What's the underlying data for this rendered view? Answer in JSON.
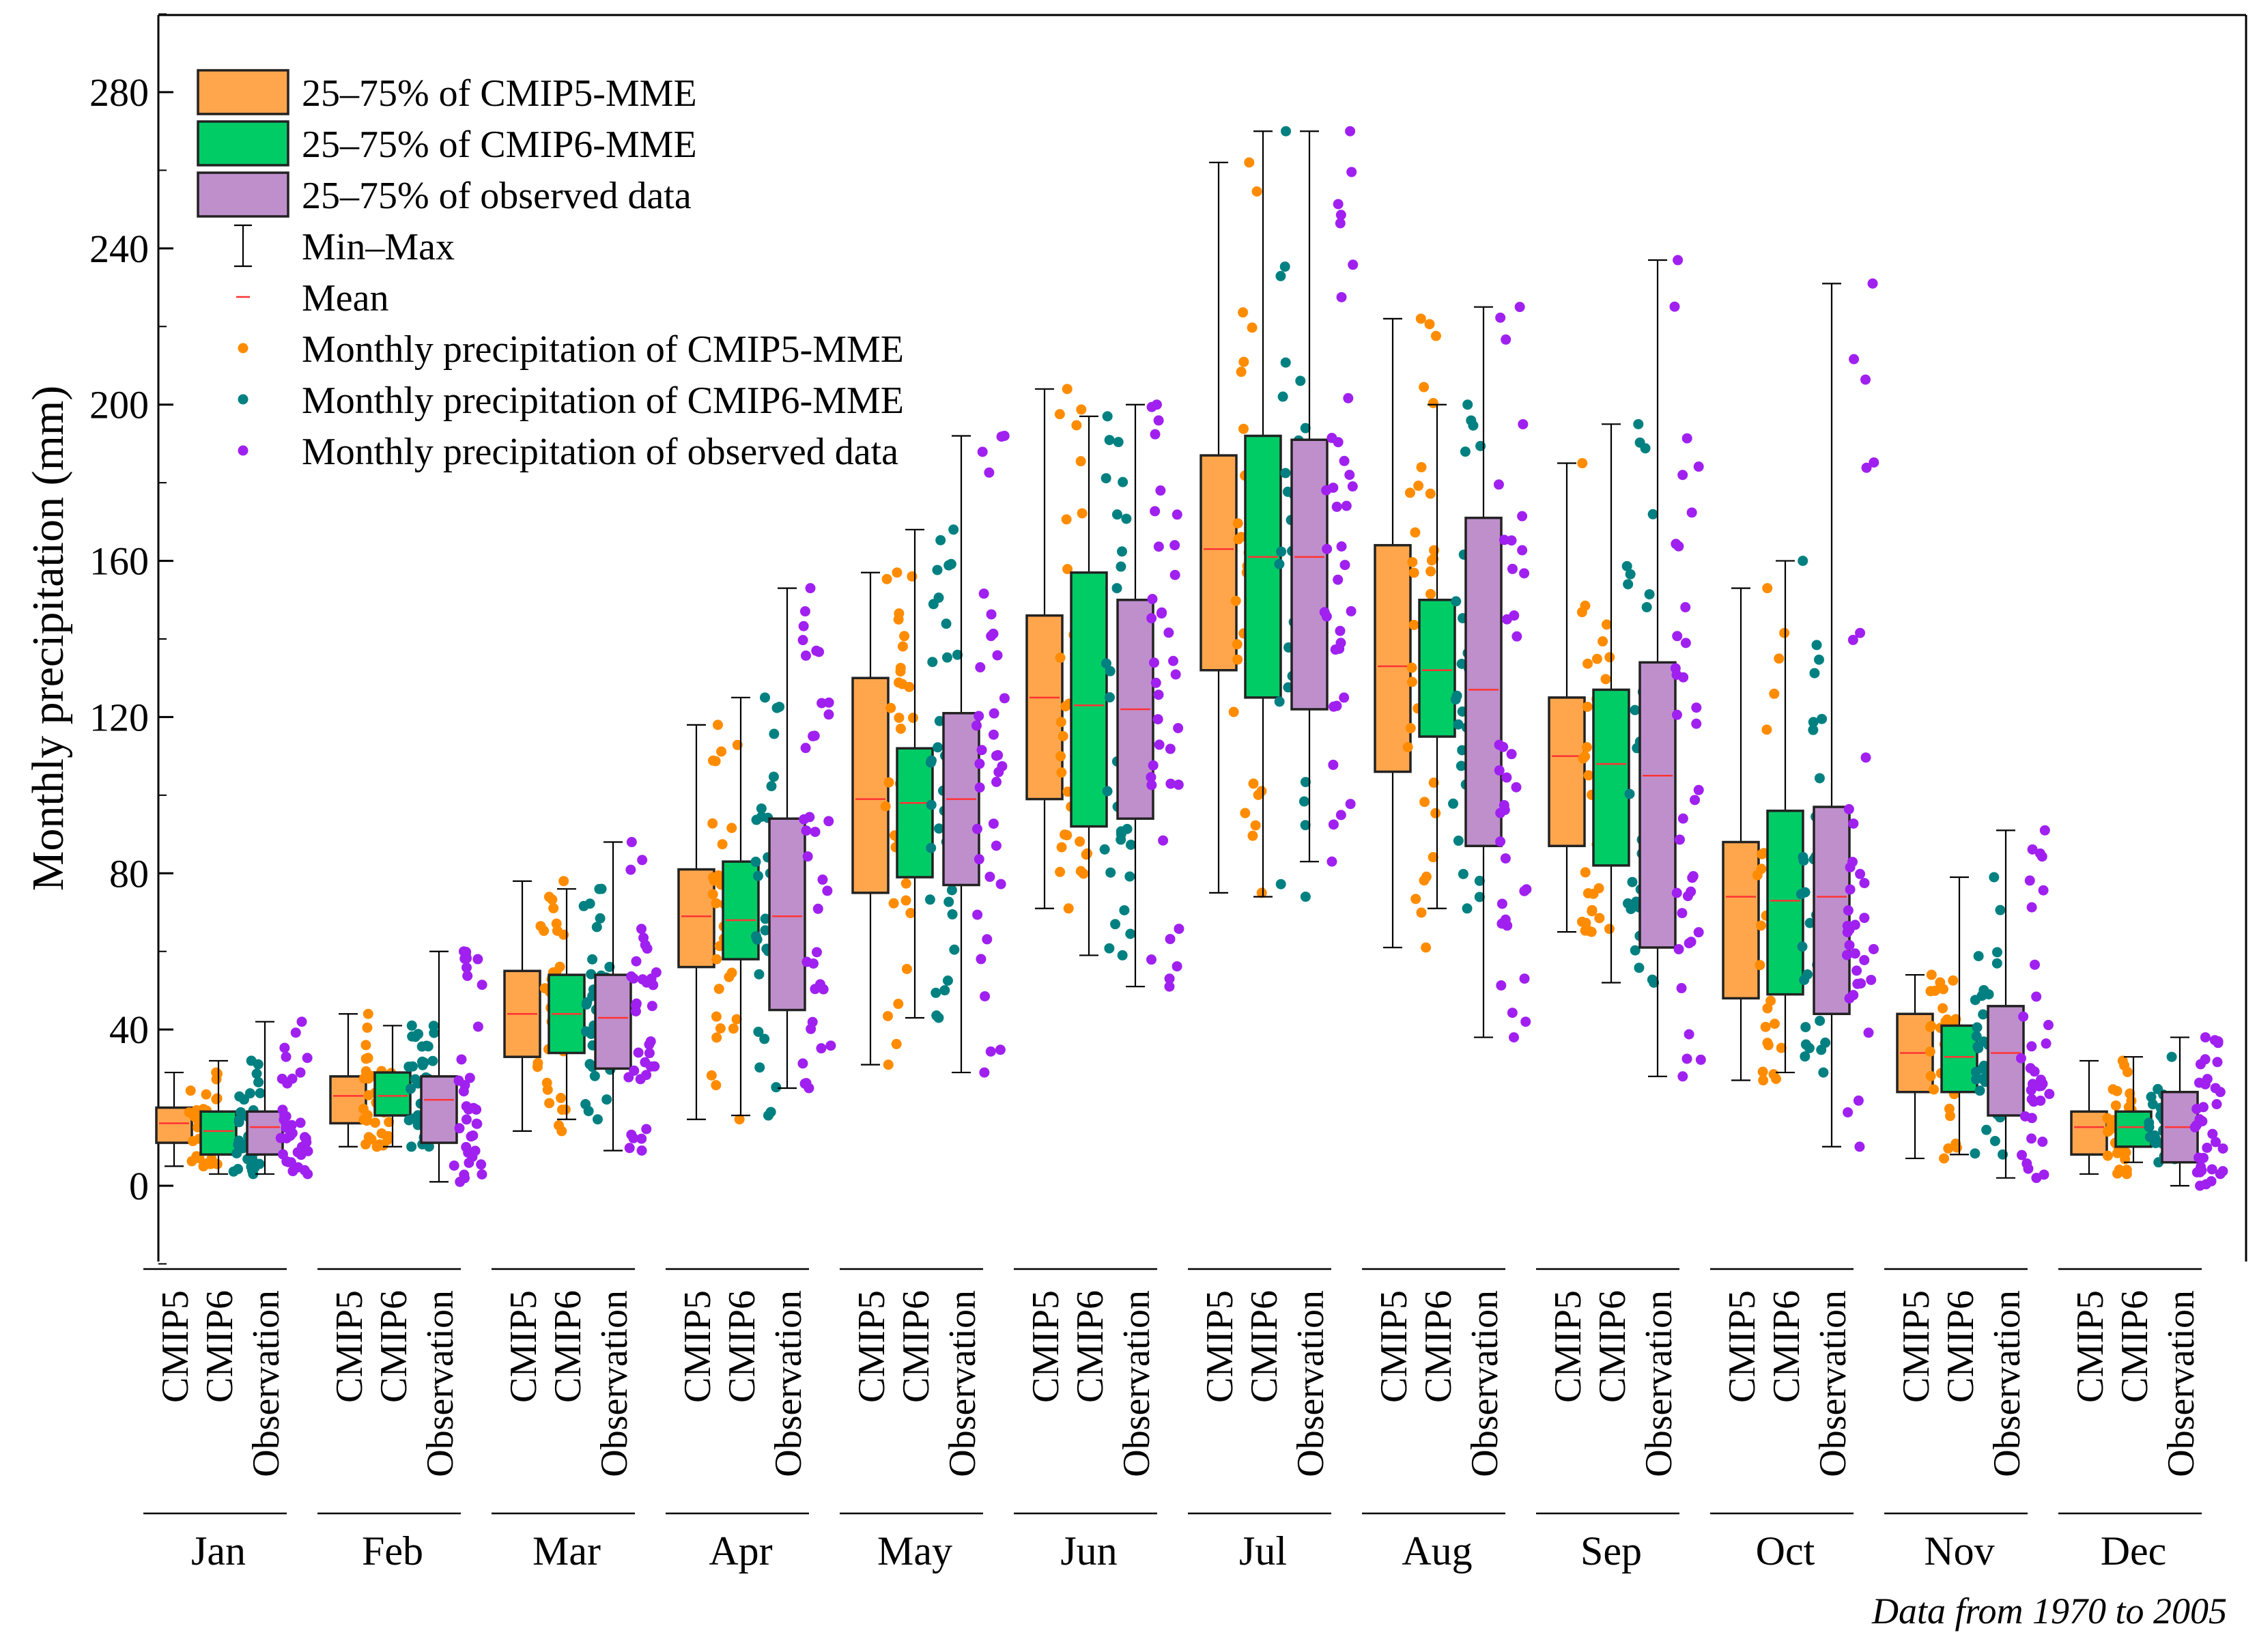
{
  "chart_data": {
    "type": "box",
    "ylabel": "Monthly precipitation (mm)",
    "xlabel": "",
    "ylim": [
      -20,
      300
    ],
    "yticks": [
      0,
      40,
      80,
      120,
      160,
      200,
      240,
      280
    ],
    "grid": false,
    "legend_position": "top-left",
    "footnote": "Data from 1970 to 2005",
    "months": [
      "Jan",
      "Feb",
      "Mar",
      "Apr",
      "May",
      "Jun",
      "Jul",
      "Aug",
      "Sep",
      "Oct",
      "Nov",
      "Dec"
    ],
    "sources": [
      {
        "key": "cmip5",
        "label": "CMIP5",
        "box_color": "#FFA64D",
        "dot_color": "#FF8C00"
      },
      {
        "key": "cmip6",
        "label": "CMIP6",
        "box_color": "#00CC66",
        "dot_color": "#008080"
      },
      {
        "key": "obs",
        "label": "Observation",
        "box_color": "#BF8FCC",
        "dot_color": "#A020F0"
      }
    ],
    "legend": [
      {
        "kind": "box",
        "color": "#FFA64D",
        "label": "25–75% of CMIP5-MME"
      },
      {
        "kind": "box",
        "color": "#00CC66",
        "label": "25–75% of CMIP6-MME"
      },
      {
        "kind": "box",
        "color": "#BF8FCC",
        "label": "25–75% of observed data"
      },
      {
        "kind": "whisker",
        "color": "#000000",
        "label": "Min–Max"
      },
      {
        "kind": "mean",
        "color": "#FF3333",
        "label": "Mean"
      },
      {
        "kind": "dot",
        "color": "#FF8C00",
        "label": "Monthly precipitation of CMIP5-MME"
      },
      {
        "kind": "dot",
        "color": "#008080",
        "label": "Monthly precipitation of CMIP6-MME"
      },
      {
        "kind": "dot",
        "color": "#A020F0",
        "label": "Monthly precipitation of observed data"
      }
    ],
    "stats": {
      "cmip5": [
        {
          "min": 5,
          "q1": 11,
          "mean": 16,
          "q3": 20,
          "max": 29
        },
        {
          "min": 10,
          "q1": 16,
          "mean": 23,
          "q3": 28,
          "max": 44
        },
        {
          "min": 14,
          "q1": 33,
          "mean": 44,
          "q3": 55,
          "max": 78
        },
        {
          "min": 17,
          "q1": 56,
          "mean": 69,
          "q3": 81,
          "max": 118
        },
        {
          "min": 31,
          "q1": 75,
          "mean": 99,
          "q3": 130,
          "max": 157
        },
        {
          "min": 71,
          "q1": 99,
          "mean": 125,
          "q3": 146,
          "max": 204
        },
        {
          "min": 75,
          "q1": 132,
          "mean": 163,
          "q3": 187,
          "max": 262
        },
        {
          "min": 61,
          "q1": 106,
          "mean": 133,
          "q3": 164,
          "max": 222
        },
        {
          "min": 65,
          "q1": 87,
          "mean": 110,
          "q3": 125,
          "max": 185
        },
        {
          "min": 27,
          "q1": 48,
          "mean": 74,
          "q3": 88,
          "max": 153
        },
        {
          "min": 7,
          "q1": 24,
          "mean": 34,
          "q3": 44,
          "max": 54
        },
        {
          "min": 3,
          "q1": 8,
          "mean": 15,
          "q3": 19,
          "max": 32
        }
      ],
      "cmip6": [
        {
          "min": 3,
          "q1": 8,
          "mean": 14,
          "q3": 19,
          "max": 32
        },
        {
          "min": 10,
          "q1": 18,
          "mean": 23,
          "q3": 29,
          "max": 41
        },
        {
          "min": 17,
          "q1": 34,
          "mean": 44,
          "q3": 54,
          "max": 76
        },
        {
          "min": 18,
          "q1": 58,
          "mean": 68,
          "q3": 83,
          "max": 125
        },
        {
          "min": 43,
          "q1": 79,
          "mean": 98,
          "q3": 112,
          "max": 168
        },
        {
          "min": 59,
          "q1": 92,
          "mean": 123,
          "q3": 157,
          "max": 197
        },
        {
          "min": 74,
          "q1": 125,
          "mean": 161,
          "q3": 192,
          "max": 270
        },
        {
          "min": 71,
          "q1": 115,
          "mean": 132,
          "q3": 150,
          "max": 200
        },
        {
          "min": 52,
          "q1": 82,
          "mean": 108,
          "q3": 127,
          "max": 195
        },
        {
          "min": 29,
          "q1": 49,
          "mean": 73,
          "q3": 96,
          "max": 160
        },
        {
          "min": 8,
          "q1": 24,
          "mean": 33,
          "q3": 41,
          "max": 79
        },
        {
          "min": 6,
          "q1": 10,
          "mean": 15,
          "q3": 19,
          "max": 33
        }
      ],
      "obs": [
        {
          "min": 3,
          "q1": 8,
          "mean": 15,
          "q3": 19,
          "max": 42
        },
        {
          "min": 1,
          "q1": 11,
          "mean": 22,
          "q3": 28,
          "max": 60
        },
        {
          "min": 9,
          "q1": 30,
          "mean": 43,
          "q3": 54,
          "max": 88
        },
        {
          "min": 25,
          "q1": 45,
          "mean": 69,
          "q3": 94,
          "max": 153
        },
        {
          "min": 29,
          "q1": 77,
          "mean": 99,
          "q3": 121,
          "max": 192
        },
        {
          "min": 51,
          "q1": 94,
          "mean": 122,
          "q3": 150,
          "max": 200
        },
        {
          "min": 83,
          "q1": 122,
          "mean": 161,
          "q3": 191,
          "max": 270
        },
        {
          "min": 38,
          "q1": 87,
          "mean": 127,
          "q3": 171,
          "max": 225
        },
        {
          "min": 28,
          "q1": 61,
          "mean": 105,
          "q3": 134,
          "max": 237
        },
        {
          "min": 10,
          "q1": 44,
          "mean": 74,
          "q3": 97,
          "max": 231
        },
        {
          "min": 2,
          "q1": 18,
          "mean": 34,
          "q3": 46,
          "max": 91
        },
        {
          "min": 0,
          "q1": 6,
          "mean": 15,
          "q3": 24,
          "max": 38
        }
      ]
    },
    "points_per_box": 36
  }
}
